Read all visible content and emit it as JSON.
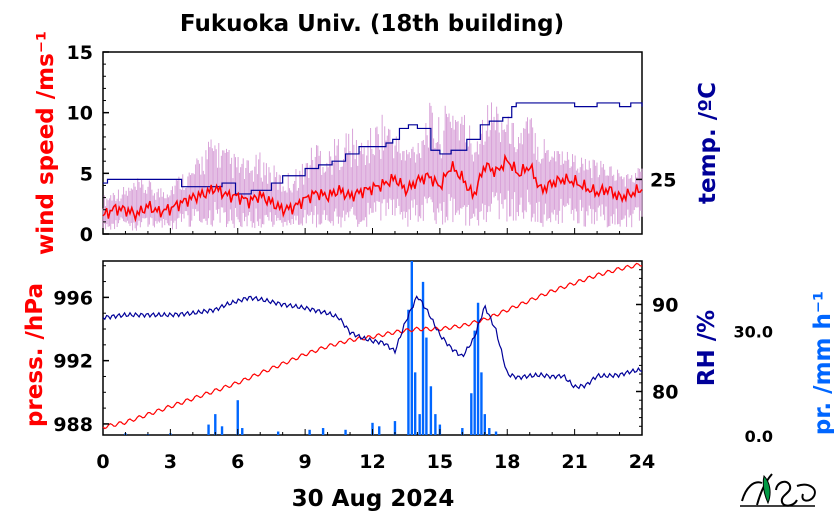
{
  "title": "Fukuoka Univ. (18th building)",
  "date_label": "30 Aug 2024",
  "colors": {
    "wind": "#ff0000",
    "wind_raw": "#d9a3d9",
    "temp": "#000099",
    "press": "#ff0000",
    "rh": "#000099",
    "rain": "#0066ff"
  },
  "chart_data": [
    {
      "type": "line",
      "panel": "wind-temperature",
      "xlim": [
        0,
        24
      ],
      "x_ticks": [
        "0",
        "3",
        "6",
        "9",
        "12",
        "15",
        "18",
        "21",
        "24"
      ],
      "ylabel": "wind speed /ms⁻¹",
      "ylim": [
        0,
        15
      ],
      "y_ticks": [
        "0",
        "5",
        "10",
        "15"
      ],
      "y2label": "temp. /ºC",
      "y2_ticks": [
        "25"
      ],
      "y2lim": [
        23.5,
        28.5
      ],
      "series": [
        {
          "key": "wind_mean",
          "x": [
            0,
            0.5,
            1,
            1.5,
            2,
            2.5,
            3,
            3.5,
            4,
            4.5,
            5,
            5.5,
            6,
            6.5,
            7,
            7.5,
            8,
            8.5,
            9,
            9.5,
            10,
            10.5,
            11,
            11.5,
            12,
            12.5,
            13,
            13.5,
            14,
            14.5,
            15,
            15.5,
            16,
            16.5,
            17,
            17.5,
            18,
            18.5,
            19,
            19.5,
            20,
            20.5,
            21,
            21.5,
            22,
            22.5,
            23,
            23.5,
            24
          ],
          "values": [
            1.5,
            2.1,
            2.0,
            1.6,
            2.3,
            1.8,
            2.1,
            2.6,
            3.0,
            3.3,
            3.8,
            3.2,
            3.1,
            2.7,
            3.2,
            2.6,
            2.0,
            2.2,
            2.9,
            3.4,
            3.1,
            3.6,
            3.1,
            3.5,
            3.8,
            4.1,
            4.6,
            3.6,
            4.4,
            4.8,
            3.9,
            5.6,
            4.6,
            3.1,
            5.7,
            5.1,
            6.1,
            4.9,
            5.6,
            3.6,
            4.2,
            4.5,
            4.3,
            3.8,
            3.4,
            3.7,
            3.0,
            3.3,
            3.7
          ]
        },
        {
          "key": "wind_instant_max",
          "x": [
            0,
            0.5,
            1,
            1.5,
            2,
            2.5,
            3,
            3.5,
            4,
            4.5,
            5,
            5.5,
            6,
            6.5,
            7,
            7.5,
            8,
            8.5,
            9,
            9.5,
            10,
            10.5,
            11,
            11.5,
            12,
            12.5,
            13,
            13.5,
            14,
            14.5,
            15,
            15.5,
            16,
            16.5,
            17,
            17.5,
            18,
            18.5,
            19,
            19.5,
            20,
            20.5,
            21,
            21.5,
            22,
            22.5,
            23,
            23.5,
            24
          ],
          "values": [
            3.2,
            3.8,
            4.0,
            4.6,
            4.5,
            4.0,
            4.4,
            5.2,
            5.6,
            7.5,
            8.4,
            7.2,
            6.6,
            6.1,
            6.8,
            5.9,
            5.0,
            5.4,
            6.2,
            8.2,
            7.1,
            8.4,
            9.0,
            8.0,
            9.0,
            10.5,
            8.6,
            7.5,
            8.2,
            11.0,
            9.6,
            11.8,
            10.6,
            8.8,
            10.9,
            11.5,
            9.9,
            8.9,
            10.2,
            8.4,
            8.0,
            7.2,
            6.7,
            6.3,
            6.1,
            6.0,
            5.4,
            5.0,
            5.9
          ]
        },
        {
          "key": "temperature",
          "x": [
            0,
            0.2,
            2.5,
            3.5,
            5.3,
            5.9,
            6.6,
            7.5,
            8.0,
            9.0,
            9.6,
            10.2,
            10.8,
            11.4,
            12.0,
            12.6,
            12.9,
            13.2,
            13.6,
            14.0,
            14.6,
            15.0,
            15.5,
            16.2,
            16.8,
            17.2,
            17.8,
            18.2,
            18.4,
            20.5,
            21.0,
            21.5,
            22.0,
            22.5,
            23.0,
            23.5,
            24
          ],
          "values": [
            24.9,
            25.0,
            25.0,
            24.8,
            24.9,
            24.6,
            24.7,
            24.9,
            25.1,
            25.3,
            25.4,
            25.5,
            25.7,
            25.9,
            25.9,
            26.0,
            26.1,
            26.4,
            26.5,
            26.4,
            25.8,
            25.7,
            25.8,
            26.1,
            26.5,
            26.6,
            26.7,
            27.0,
            27.1,
            27.1,
            27.0,
            27.0,
            27.1,
            27.1,
            27.0,
            27.1,
            27.0
          ]
        }
      ]
    },
    {
      "type": "line",
      "panel": "pressure-humidity-precipitation",
      "xlim": [
        0,
        24
      ],
      "x_ticks": [
        "0",
        "3",
        "6",
        "9",
        "12",
        "15",
        "18",
        "21",
        "24"
      ],
      "xlabel": "30 Aug 2024",
      "ylabel": "press. /hPa",
      "ylim": [
        987.3,
        998.3
      ],
      "y_ticks": [
        "988",
        "992",
        "996"
      ],
      "y2label": "RH /%",
      "y2lim": [
        75,
        95
      ],
      "y2_ticks": [
        "80",
        "90"
      ],
      "y3label": "pr. /mm h⁻¹",
      "y3lim": [
        0,
        50
      ],
      "y3_ticks": [
        "0.0",
        "30.0"
      ],
      "series": [
        {
          "key": "pressure",
          "x": [
            0,
            1,
            2,
            3,
            4,
            5,
            6,
            7,
            8,
            9,
            10,
            11,
            12,
            13,
            14,
            15,
            16,
            17,
            18,
            19,
            20,
            21,
            22,
            23,
            24
          ],
          "values": [
            987.8,
            988.1,
            988.6,
            989.1,
            989.6,
            990.1,
            990.6,
            991.2,
            991.8,
            992.4,
            992.9,
            993.3,
            993.5,
            993.8,
            994.0,
            994.0,
            994.2,
            994.6,
            995.2,
            995.8,
            996.4,
            996.9,
            997.4,
            997.8,
            998.1
          ]
        },
        {
          "key": "humidity",
          "x": [
            0,
            1,
            2,
            3,
            4,
            5,
            5.5,
            6,
            6.5,
            7,
            7.5,
            8,
            8.5,
            9,
            9.5,
            10,
            10.5,
            11,
            11.5,
            12,
            12.5,
            13,
            13.5,
            14,
            14.5,
            15,
            15.5,
            16,
            16.5,
            17,
            17.5,
            18,
            18.5,
            19,
            19.5,
            20,
            20.5,
            21,
            21.5,
            22,
            22.5,
            23,
            23.5,
            24
          ],
          "values": [
            88.5,
            88.8,
            88.8,
            88.8,
            89.0,
            89.4,
            90.0,
            90.4,
            90.8,
            90.6,
            90.3,
            90.0,
            89.8,
            89.6,
            89.3,
            89.0,
            88.5,
            86.8,
            86.2,
            85.8,
            85.6,
            84.6,
            88.2,
            91.0,
            89.0,
            86.5,
            85.0,
            84.0,
            86.0,
            89.8,
            87.0,
            82.0,
            81.6,
            81.8,
            81.9,
            81.7,
            81.8,
            80.5,
            80.7,
            81.8,
            81.8,
            81.9,
            82.3,
            82.5
          ]
        },
        {
          "key": "precipitation",
          "x": [
            1.0,
            2.0,
            3.0,
            4.7,
            5.0,
            5.3,
            6.0,
            6.2,
            7.8,
            9.2,
            9.8,
            10.8,
            12.0,
            12.3,
            13.0,
            13.6,
            13.75,
            13.9,
            14.1,
            14.25,
            14.4,
            14.6,
            14.8,
            15.0,
            16.0,
            16.4,
            16.55,
            16.7,
            16.85,
            17.0,
            17.2,
            17.5
          ],
          "values": [
            0.5,
            0.3,
            0.5,
            3.0,
            6.0,
            2.5,
            10.0,
            2.0,
            1.0,
            1.5,
            2.0,
            1.5,
            3.5,
            2.5,
            4.0,
            36.0,
            50.0,
            18.0,
            6.0,
            44.0,
            28.0,
            14.0,
            6.0,
            3.0,
            2.0,
            12.0,
            30.0,
            38.0,
            18.0,
            6.0,
            2.0,
            1.0
          ]
        }
      ]
    }
  ]
}
